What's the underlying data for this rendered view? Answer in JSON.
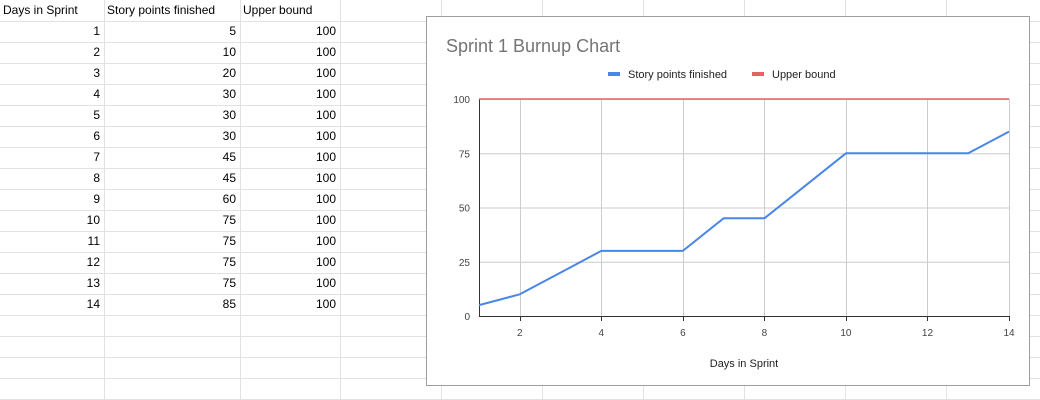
{
  "sheet": {
    "headers": [
      "Days in Sprint",
      "Story points finished",
      "Upper bound"
    ],
    "rows": [
      [
        "1",
        "5",
        "100"
      ],
      [
        "2",
        "10",
        "100"
      ],
      [
        "3",
        "20",
        "100"
      ],
      [
        "4",
        "30",
        "100"
      ],
      [
        "5",
        "30",
        "100"
      ],
      [
        "6",
        "30",
        "100"
      ],
      [
        "7",
        "45",
        "100"
      ],
      [
        "8",
        "45",
        "100"
      ],
      [
        "9",
        "60",
        "100"
      ],
      [
        "10",
        "75",
        "100"
      ],
      [
        "11",
        "75",
        "100"
      ],
      [
        "12",
        "75",
        "100"
      ],
      [
        "13",
        "75",
        "100"
      ],
      [
        "14",
        "85",
        "100"
      ]
    ]
  },
  "chart_data": {
    "type": "line",
    "title": "Sprint 1 Burnup Chart",
    "xlabel": "Days in Sprint",
    "ylabel": "",
    "x": [
      1,
      2,
      3,
      4,
      5,
      6,
      7,
      8,
      9,
      10,
      11,
      12,
      13,
      14
    ],
    "series": [
      {
        "name": "Story points finished",
        "color": "#4a86e8",
        "values": [
          5,
          10,
          20,
          30,
          30,
          30,
          45,
          45,
          60,
          75,
          75,
          75,
          75,
          85
        ]
      },
      {
        "name": "Upper bound",
        "color": "#e06666",
        "values": [
          100,
          100,
          100,
          100,
          100,
          100,
          100,
          100,
          100,
          100,
          100,
          100,
          100,
          100
        ]
      }
    ],
    "xlim": [
      1,
      14
    ],
    "ylim": [
      0,
      100
    ],
    "xticks": [
      2,
      4,
      6,
      8,
      10,
      12,
      14
    ],
    "yticks": [
      0,
      25,
      50,
      75,
      100
    ],
    "grid": true,
    "legend": "top"
  }
}
